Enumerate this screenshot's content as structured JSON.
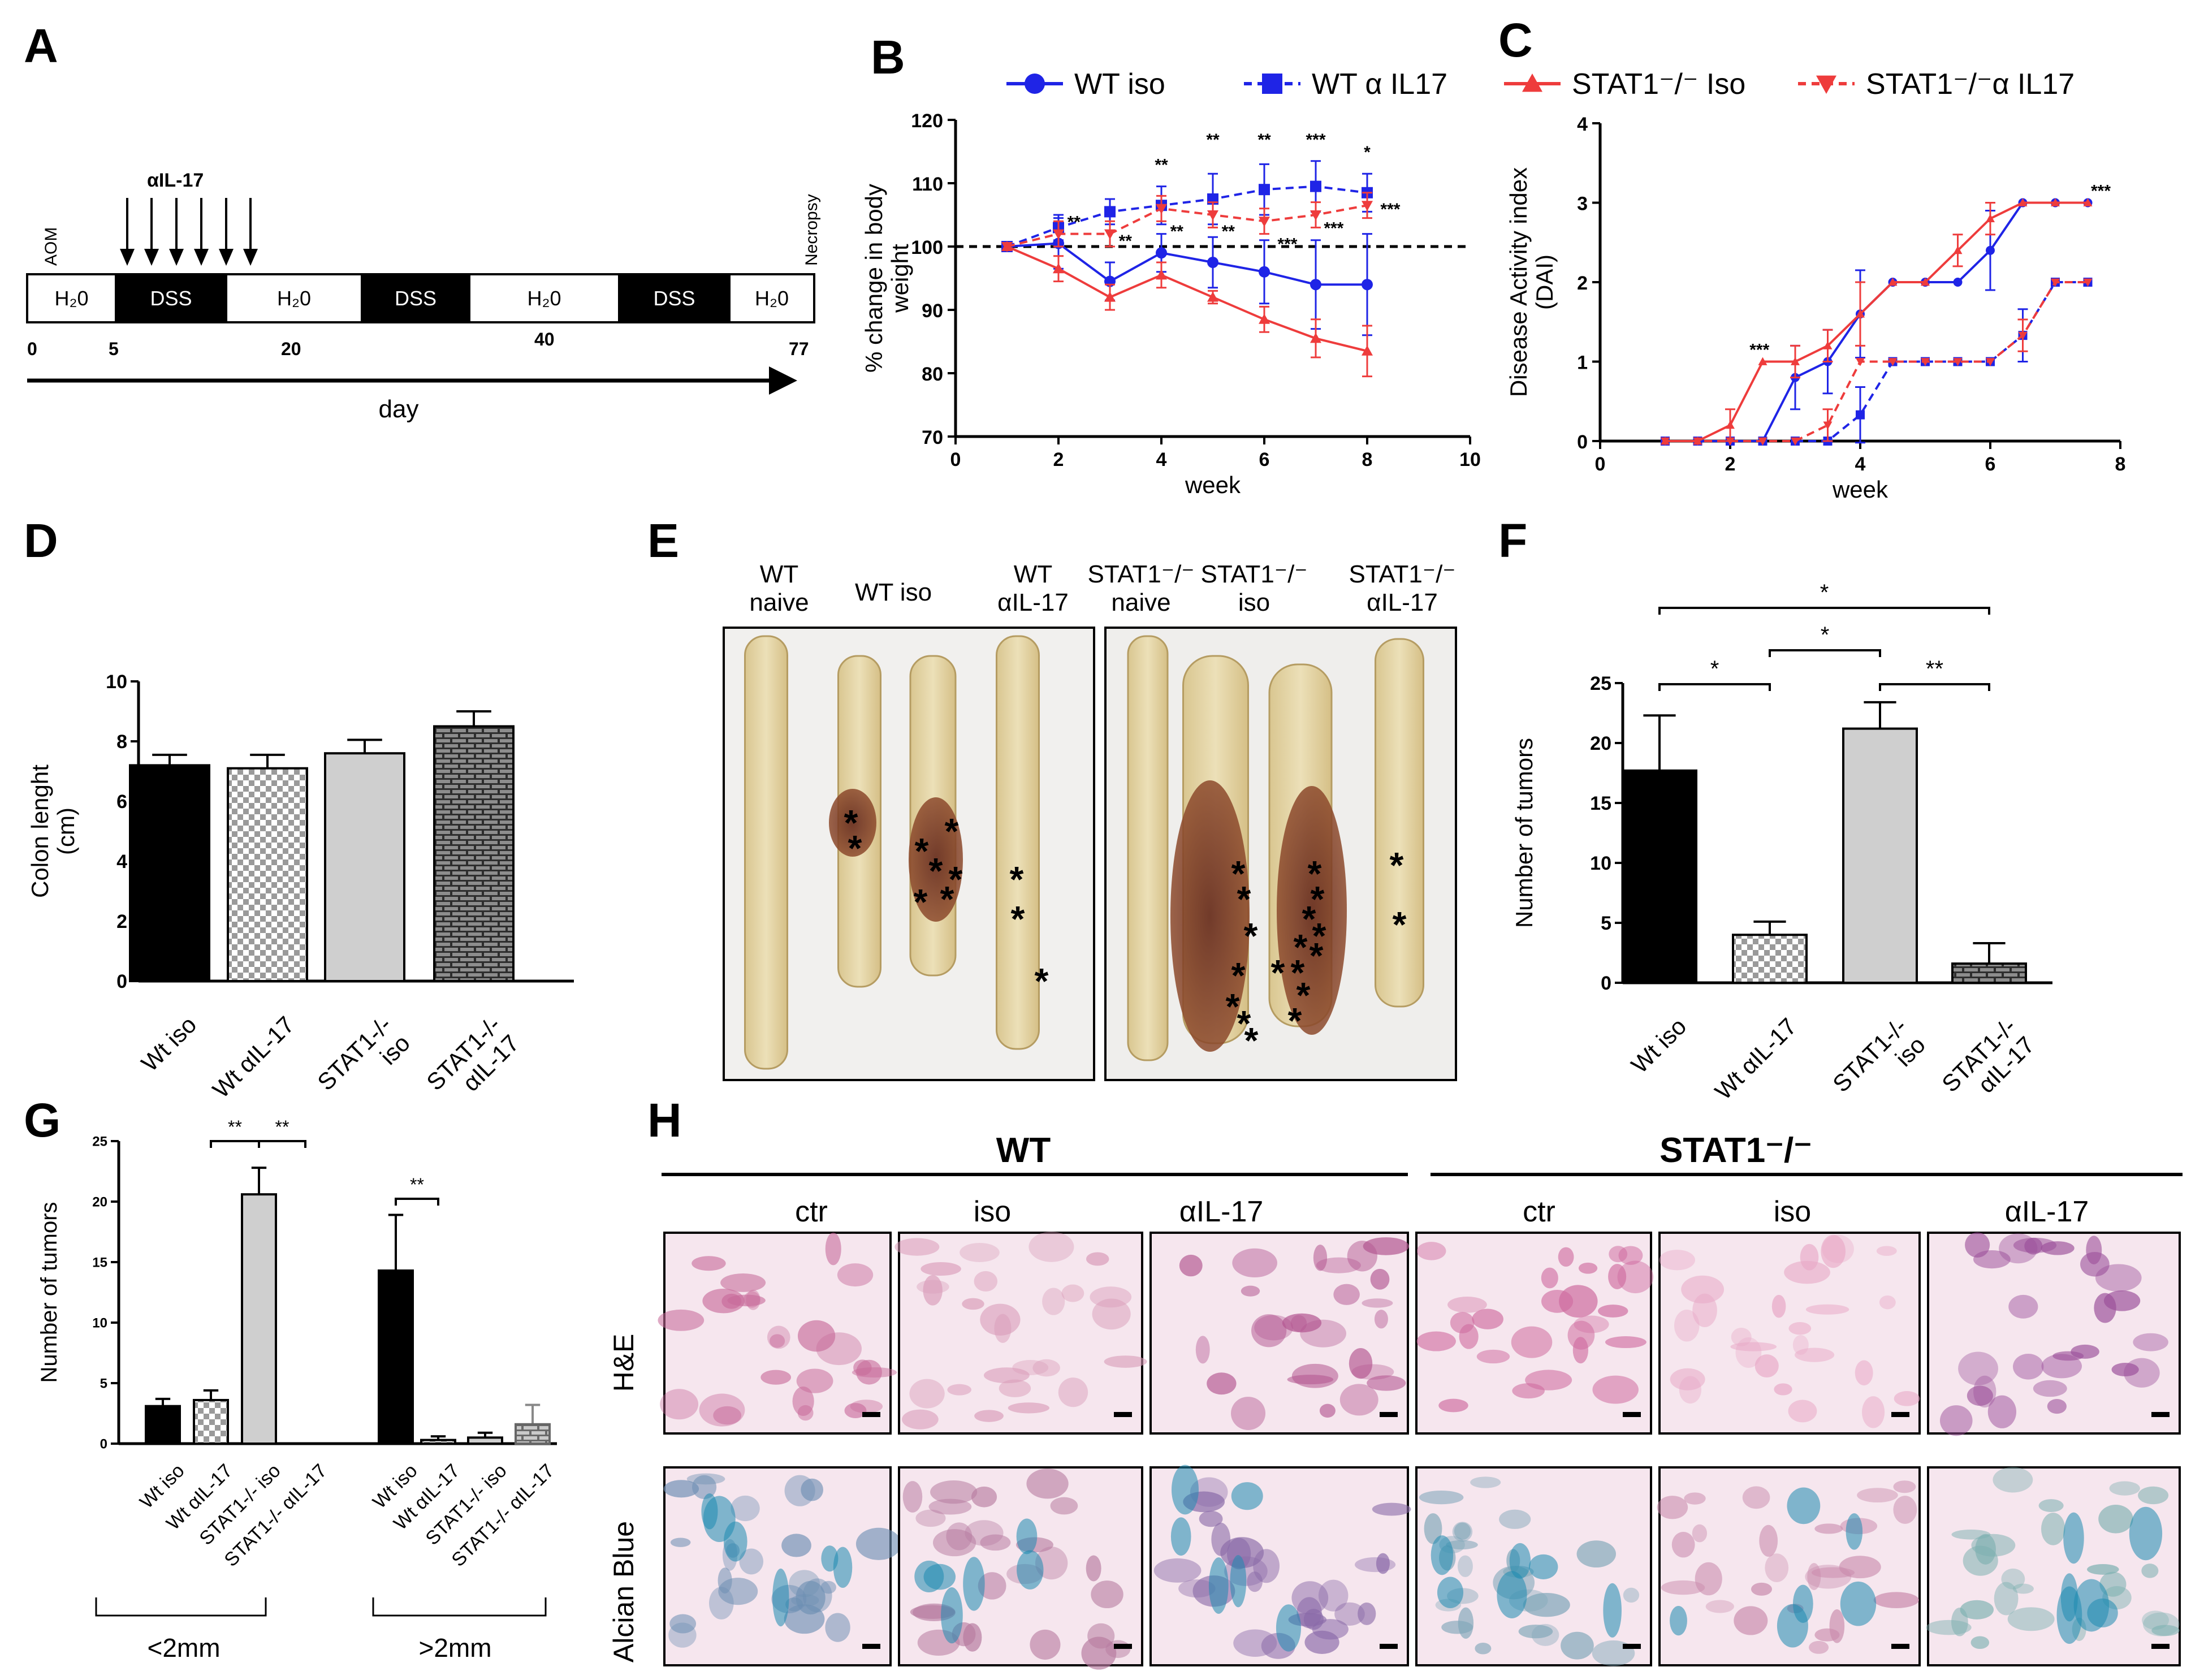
{
  "panels": {
    "a": "A",
    "b": "B",
    "c": "C",
    "d": "D",
    "e": "E",
    "f": "F",
    "g": "G",
    "h": "H"
  },
  "colors": {
    "wt": "#1f24e6",
    "stat1": "#ee3c3c",
    "black": "#000000",
    "light": "#cfcfcf"
  },
  "timeline": {
    "treatment": "αIL-17",
    "left_label": "AOM",
    "right_label": "Necropsy",
    "segments": [
      "H₂0",
      "DSS",
      "H₂0",
      "DSS",
      "H₂0",
      "DSS",
      "H₂0"
    ],
    "day_ticks": [
      "0",
      "5",
      "20",
      "40",
      "77"
    ],
    "axis_label": "day"
  },
  "legend": {
    "wt_iso": "WT iso",
    "wt_il17": "WT α IL17",
    "stat_iso": "STAT1⁻/⁻ Iso",
    "stat_il17": "STAT1⁻/⁻α IL17"
  },
  "panel_e": {
    "wt_naive": [
      "WT",
      "naive"
    ],
    "wt_iso": "WT iso",
    "wt_il17": [
      "WT",
      "αIL-17"
    ],
    "stat_naive": [
      "STAT1⁻/⁻",
      "naive"
    ],
    "stat_iso": [
      "STAT1⁻/⁻",
      "iso"
    ],
    "stat_il17": [
      "STAT1⁻/⁻",
      "αIL-17"
    ],
    "tumor_marker": "*"
  },
  "panel_h": {
    "wt": "WT",
    "stat": "STAT1⁻/⁻",
    "cols": [
      "ctr",
      "iso",
      "αIL-17",
      "ctr",
      "iso",
      "αIL-17"
    ],
    "rows": [
      "H&E",
      "Alcian Blue"
    ]
  },
  "chart_data": [
    {
      "id": "B",
      "type": "line",
      "xlabel": "week",
      "ylabel": "% change in body weight",
      "xlim": [
        0,
        10
      ],
      "ylim": [
        70,
        120
      ],
      "xticks": [
        0,
        2,
        4,
        6,
        8,
        10
      ],
      "yticks": [
        70,
        80,
        90,
        100,
        110,
        120
      ],
      "reference_line": 100,
      "series": [
        {
          "name": "WT iso",
          "color": "#1f24e6",
          "dashed": false,
          "marker": "circle",
          "x": [
            1,
            2,
            3,
            4,
            5,
            6,
            7,
            8
          ],
          "y": [
            100,
            100.5,
            94.5,
            99,
            97.5,
            96,
            94,
            94
          ],
          "err": [
            0,
            4,
            3,
            3,
            4,
            5,
            7,
            8
          ]
        },
        {
          "name": "WT α IL17",
          "color": "#1f24e6",
          "dashed": true,
          "marker": "square",
          "x": [
            1,
            2,
            3,
            4,
            5,
            6,
            7,
            8
          ],
          "y": [
            100,
            103,
            105.5,
            106.5,
            107.5,
            109,
            109.5,
            108.5
          ],
          "err": [
            0,
            2,
            2,
            3,
            4,
            4,
            4,
            3
          ]
        },
        {
          "name": "STAT1-/- Iso",
          "color": "#ee3c3c",
          "dashed": false,
          "marker": "triangle",
          "x": [
            1,
            2,
            3,
            4,
            5,
            6,
            7,
            8
          ],
          "y": [
            100,
            96.5,
            92,
            95.5,
            92,
            88.5,
            85.5,
            83.5
          ],
          "err": [
            0,
            2,
            2,
            2,
            1,
            2,
            3,
            4
          ]
        },
        {
          "name": "STAT1-/- α IL17",
          "color": "#ee3c3c",
          "dashed": true,
          "marker": "triangle-down",
          "x": [
            1,
            2,
            3,
            4,
            5,
            6,
            7,
            8
          ],
          "y": [
            100,
            102,
            102,
            106,
            105,
            104,
            105,
            106.5
          ],
          "err": [
            0,
            2,
            2,
            2,
            2,
            2,
            2,
            2
          ]
        }
      ],
      "annotations": [
        {
          "text": "**",
          "x": 2.3,
          "y": 103
        },
        {
          "text": "**",
          "x": 3.3,
          "y": 100
        },
        {
          "text": "**",
          "x": 4,
          "y": 112
        },
        {
          "text": "**",
          "x": 4.3,
          "y": 101.5
        },
        {
          "text": "**",
          "x": 5,
          "y": 116
        },
        {
          "text": "**",
          "x": 5.3,
          "y": 101.5
        },
        {
          "text": "**",
          "x": 6,
          "y": 116
        },
        {
          "text": "***",
          "x": 6.45,
          "y": 99.5
        },
        {
          "text": "***",
          "x": 7,
          "y": 116
        },
        {
          "text": "***",
          "x": 7.35,
          "y": 102
        },
        {
          "text": "*",
          "x": 8,
          "y": 114
        },
        {
          "text": "***",
          "x": 8.45,
          "y": 105
        }
      ]
    },
    {
      "id": "C",
      "type": "line",
      "xlabel": "week",
      "ylabel": "Disease Activity index (DAI)",
      "xlim": [
        0,
        8
      ],
      "ylim": [
        0,
        4
      ],
      "xticks": [
        0,
        2,
        4,
        6,
        8
      ],
      "yticks": [
        0,
        1,
        2,
        3,
        4
      ],
      "series": [
        {
          "name": "WT iso",
          "color": "#1f24e6",
          "dashed": false,
          "marker": "circle",
          "x": [
            1,
            1.5,
            2,
            2.5,
            3,
            3.5,
            4,
            4.5,
            5,
            5.5,
            6,
            6.5,
            7,
            7.5
          ],
          "y": [
            0,
            0,
            0,
            0,
            0.8,
            1,
            1.6,
            2,
            2,
            2,
            2.4,
            3,
            3,
            3
          ],
          "err": [
            0,
            0,
            0,
            0,
            0.4,
            0.4,
            0.55,
            0,
            0,
            0,
            0.5,
            0,
            0,
            0
          ]
        },
        {
          "name": "WT α IL17",
          "color": "#1f24e6",
          "dashed": true,
          "marker": "square",
          "x": [
            1,
            1.5,
            2,
            2.5,
            3,
            3.5,
            4,
            4.5,
            5,
            5.5,
            6,
            6.5,
            7,
            7.5
          ],
          "y": [
            0,
            0,
            0,
            0,
            0,
            0,
            0.33,
            1,
            1,
            1,
            1,
            1.33,
            2,
            2
          ],
          "err": [
            0,
            0,
            0,
            0,
            0,
            0,
            0.35,
            0,
            0,
            0,
            0,
            0.33,
            0,
            0
          ]
        },
        {
          "name": "STAT1-/- Iso",
          "color": "#ee3c3c",
          "dashed": false,
          "marker": "triangle",
          "x": [
            1,
            1.5,
            2,
            2.5,
            3,
            3.5,
            4,
            4.5,
            5,
            5.5,
            6,
            6.5,
            7,
            7.5
          ],
          "y": [
            0,
            0,
            0.2,
            1,
            1,
            1.2,
            1.6,
            2,
            2,
            2.4,
            2.8,
            3,
            3,
            3
          ],
          "err": [
            0,
            0,
            0.2,
            0,
            0.2,
            0.2,
            0.4,
            0,
            0,
            0.2,
            0.2,
            0,
            0,
            0
          ]
        },
        {
          "name": "STAT1-/- α IL17",
          "color": "#ee3c3c",
          "dashed": true,
          "marker": "triangle-down",
          "x": [
            1,
            1.5,
            2,
            2.5,
            3,
            3.5,
            4,
            4.5,
            5,
            5.5,
            6,
            6.5,
            7,
            7.5
          ],
          "y": [
            0,
            0,
            0,
            0,
            0,
            0.2,
            1,
            1,
            1,
            1,
            1,
            1.33,
            2,
            2
          ],
          "err": [
            0,
            0,
            0,
            0,
            0,
            0.2,
            0,
            0,
            0,
            0,
            0,
            0.2,
            0,
            0
          ]
        }
      ],
      "annotations": [
        {
          "text": "***",
          "x": 2.45,
          "y": 1.08
        },
        {
          "text": "***",
          "x": 7.7,
          "y": 3.08
        }
      ]
    },
    {
      "id": "D",
      "type": "bar",
      "ylabel": "Colon lenght (cm)",
      "ylim": [
        0,
        10
      ],
      "yticks": [
        0,
        2,
        4,
        6,
        8,
        10
      ],
      "categories": [
        "Wt iso",
        "Wt αIL-17",
        "STAT1-/- iso",
        "STAT1-/- αIL-17"
      ],
      "values": [
        7.2,
        7.1,
        7.6,
        8.5
      ],
      "errors": [
        0.35,
        0.45,
        0.45,
        0.5
      ],
      "fills": [
        "black",
        "checker",
        "gray",
        "brick"
      ]
    },
    {
      "id": "F",
      "type": "bar",
      "ylabel": "Number of tumors",
      "ylim": [
        0,
        25
      ],
      "yticks": [
        0,
        5,
        10,
        15,
        20,
        25
      ],
      "categories": [
        "Wt iso",
        "Wt αIL-17",
        "STAT1-/- iso",
        "STAT1-/- αIL-17"
      ],
      "values": [
        17.7,
        4,
        21.2,
        1.6
      ],
      "errors": [
        4.6,
        1.1,
        2.2,
        1.7
      ],
      "fills": [
        "black",
        "checker",
        "gray",
        "brick"
      ],
      "significance": [
        {
          "from": 0,
          "to": 1,
          "text": "*"
        },
        {
          "from": 1,
          "to": 2,
          "text": "*"
        },
        {
          "from": 2,
          "to": 3,
          "text": "**"
        },
        {
          "from": 0,
          "to": 3,
          "text": "*"
        }
      ]
    },
    {
      "id": "G",
      "type": "bar",
      "ylabel": "Number of tumors",
      "ylim": [
        0,
        25
      ],
      "yticks": [
        0,
        5,
        10,
        15,
        20,
        25
      ],
      "groups": [
        "<2mm",
        ">2mm"
      ],
      "categories": [
        "Wt iso",
        "Wt αIL-17",
        "STAT1-/- iso",
        "STAT1-/- αIL-17",
        "Wt iso",
        "Wt αIL-17",
        "STAT1-/- iso",
        "STAT1-/- αIL-17"
      ],
      "values": [
        3.1,
        3.6,
        20.6,
        0,
        14.3,
        0.3,
        0.5,
        1.6
      ],
      "errors": [
        0.6,
        0.8,
        2.2,
        0,
        4.6,
        0.3,
        0.4,
        1.6
      ],
      "fills": [
        "black",
        "checker",
        "gray",
        "brick",
        "black",
        "checker",
        "gray",
        "brick"
      ],
      "significance": [
        {
          "from": 1,
          "to": 2,
          "text": "**"
        },
        {
          "from": 2,
          "to": 3,
          "text": "**"
        },
        {
          "from": 4,
          "to": 5,
          "text": "**"
        }
      ]
    }
  ]
}
